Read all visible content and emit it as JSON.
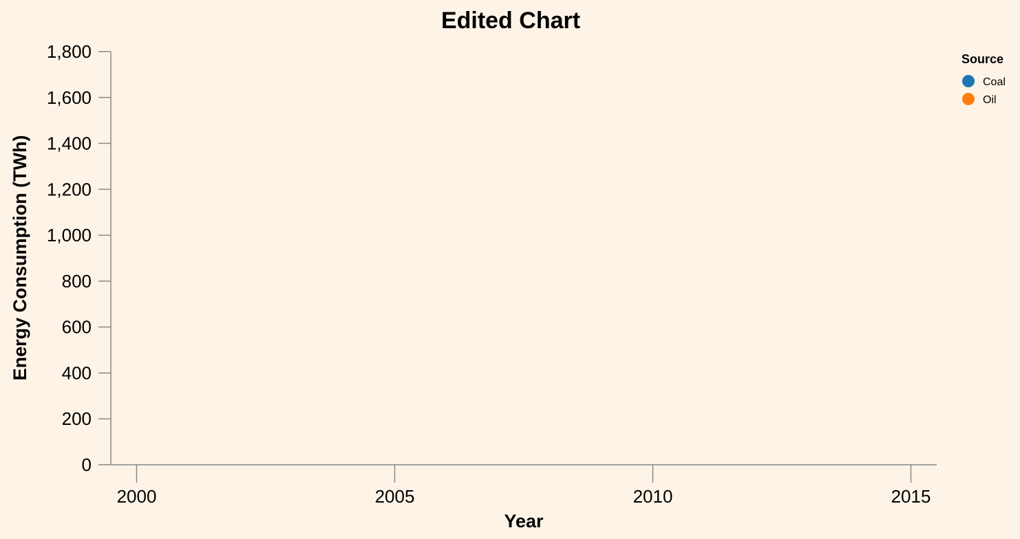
{
  "chart_data": {
    "type": "line",
    "title": "Edited Chart",
    "xlabel": "Year",
    "ylabel": "Energy Consumption (TWh)",
    "x_ticks": [
      "2000",
      "2005",
      "2010",
      "2015"
    ],
    "x_tick_values": [
      2000,
      2005,
      2010,
      2015
    ],
    "xlim": [
      1999.5,
      2015.5
    ],
    "y_ticks": [
      "0",
      "200",
      "400",
      "600",
      "800",
      "1,000",
      "1,200",
      "1,400",
      "1,600",
      "1,800"
    ],
    "y_tick_values": [
      0,
      200,
      400,
      600,
      800,
      1000,
      1200,
      1400,
      1600,
      1800
    ],
    "ylim": [
      0,
      1800
    ],
    "grid": false,
    "legend": {
      "title": "Source",
      "placement": "top-right",
      "entries": [
        {
          "name": "Coal",
          "color": "#1f77b4"
        },
        {
          "name": "Oil",
          "color": "#ff7f0e"
        }
      ]
    },
    "series": [
      {
        "name": "Coal",
        "color": "#1f77b4",
        "x": [],
        "values": []
      },
      {
        "name": "Oil",
        "color": "#ff7f0e",
        "x": [],
        "values": []
      }
    ]
  },
  "colors": {
    "background": "#fdf4e7",
    "axis": "#888888"
  }
}
